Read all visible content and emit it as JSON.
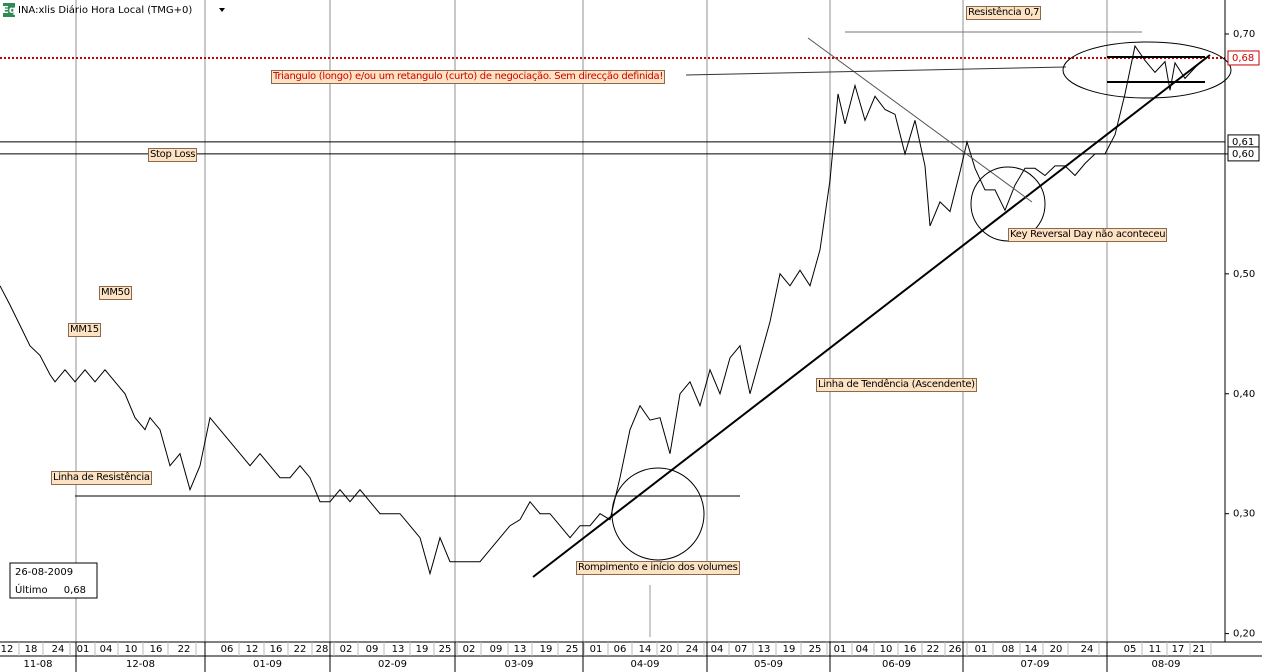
{
  "chart_data": {
    "type": "line",
    "title": "INA:xlis Diário Hora Local (TMG+0)",
    "badge": "Eq",
    "series": [
      {
        "name": "INA",
        "color": "#000000",
        "x": [
          0,
          2,
          4,
          6,
          8,
          10,
          11,
          13,
          15,
          17,
          19,
          21,
          23,
          25,
          27,
          29,
          30,
          32,
          34,
          36,
          38,
          40,
          42,
          44,
          46,
          48,
          50,
          52,
          54,
          56,
          58,
          60,
          62,
          64,
          66,
          68,
          70,
          72,
          74,
          76,
          78,
          80,
          82,
          84,
          86,
          88,
          90,
          92,
          94,
          96,
          98,
          100,
          102,
          104,
          106,
          108,
          110,
          112,
          114,
          116,
          118,
          120,
          122,
          124,
          126,
          128,
          130,
          132,
          134,
          136,
          138,
          140,
          142,
          144,
          146,
          148,
          150,
          152,
          154,
          156,
          158,
          160,
          162,
          164,
          166,
          167.6,
          169,
          171,
          173,
          175,
          177,
          179,
          181,
          183,
          185,
          186,
          188,
          190,
          192,
          193.4,
          195,
          197,
          199,
          201,
          203,
          205,
          207,
          209,
          211,
          213,
          215,
          217,
          219,
          221,
          223,
          225,
          227,
          229,
          231,
          233,
          234,
          235,
          237,
          239,
          241
        ],
        "values": [
          0.49,
          0.474,
          0.457,
          0.44,
          0.432,
          0.416,
          0.41,
          0.42,
          0.41,
          0.42,
          0.41,
          0.42,
          0.41,
          0.4,
          0.38,
          0.37,
          0.38,
          0.37,
          0.34,
          0.35,
          0.32,
          0.34,
          0.38,
          0.37,
          0.36,
          0.35,
          0.34,
          0.35,
          0.34,
          0.33,
          0.33,
          0.34,
          0.33,
          0.31,
          0.31,
          0.32,
          0.31,
          0.32,
          0.31,
          0.3,
          0.3,
          0.3,
          0.29,
          0.28,
          0.25,
          0.28,
          0.26,
          0.26,
          0.26,
          0.26,
          0.27,
          0.28,
          0.29,
          0.295,
          0.31,
          0.3,
          0.3,
          0.29,
          0.28,
          0.29,
          0.29,
          0.3,
          0.295,
          0.33,
          0.37,
          0.39,
          0.378,
          0.38,
          0.35,
          0.4,
          0.41,
          0.39,
          0.42,
          0.4,
          0.43,
          0.44,
          0.4,
          0.43,
          0.46,
          0.5,
          0.49,
          0.503,
          0.49,
          0.52,
          0.578,
          0.65,
          0.625,
          0.657,
          0.628,
          0.648,
          0.637,
          0.633,
          0.6,
          0.628,
          0.59,
          0.54,
          0.56,
          0.552,
          0.585,
          0.61,
          0.588,
          0.57,
          0.57,
          0.553,
          0.574,
          0.588,
          0.588,
          0.582,
          0.59,
          0.59,
          0.582,
          0.592,
          0.6,
          0.6,
          0.616,
          0.65,
          0.69,
          0.678,
          0.668,
          0.677,
          0.653,
          0.676,
          0.663,
          0.672,
          0.68
        ]
      }
    ],
    "xlim": [
      0,
      245
    ],
    "ylim": [
      0.193,
      0.725
    ],
    "yticks": [
      {
        "value": 0.2,
        "label": "0,20"
      },
      {
        "value": 0.3,
        "label": "0,30"
      },
      {
        "value": 0.4,
        "label": "0,40"
      },
      {
        "value": 0.5,
        "label": "0,50"
      },
      {
        "value": 0.6,
        "label": "0,60"
      },
      {
        "value": 0.7,
        "label": "0,70"
      }
    ],
    "xticks": [
      {
        "value": 1.4,
        "label": "12"
      },
      {
        "value": 6.2,
        "label": "18"
      },
      {
        "value": 11.6,
        "label": "24"
      },
      {
        "value": 16.6,
        "label": "01"
      },
      {
        "value": 21.2,
        "label": "04"
      },
      {
        "value": 26.2,
        "label": "10"
      },
      {
        "value": 31.2,
        "label": "16"
      },
      {
        "value": 36.8,
        "label": "22"
      },
      {
        "value": 45.4,
        "label": "06"
      },
      {
        "value": 50.4,
        "label": "12"
      },
      {
        "value": 55.2,
        "label": "16"
      },
      {
        "value": 60,
        "label": "22"
      },
      {
        "value": 64.4,
        "label": "28"
      },
      {
        "value": 69.2,
        "label": "02"
      },
      {
        "value": 74.4,
        "label": "09"
      },
      {
        "value": 79.6,
        "label": "13"
      },
      {
        "value": 84.4,
        "label": "19"
      },
      {
        "value": 89,
        "label": "25"
      },
      {
        "value": 93.8,
        "label": "02"
      },
      {
        "value": 99.2,
        "label": "09"
      },
      {
        "value": 104,
        "label": "13"
      },
      {
        "value": 109.2,
        "label": "19"
      },
      {
        "value": 114.4,
        "label": "25"
      },
      {
        "value": 119.2,
        "label": "01"
      },
      {
        "value": 124,
        "label": "06"
      },
      {
        "value": 129,
        "label": "14"
      },
      {
        "value": 133.2,
        "label": "20"
      },
      {
        "value": 138.4,
        "label": "24"
      },
      {
        "value": 143.4,
        "label": "04"
      },
      {
        "value": 148.2,
        "label": "07"
      },
      {
        "value": 152.8,
        "label": "13"
      },
      {
        "value": 157.8,
        "label": "19"
      },
      {
        "value": 163,
        "label": "25"
      },
      {
        "value": 168,
        "label": "01"
      },
      {
        "value": 172.4,
        "label": "04"
      },
      {
        "value": 177.2,
        "label": "10"
      },
      {
        "value": 182,
        "label": "16"
      },
      {
        "value": 186.6,
        "label": "22"
      },
      {
        "value": 191,
        "label": "26"
      },
      {
        "value": 196.2,
        "label": "01"
      },
      {
        "value": 201.6,
        "label": "08"
      },
      {
        "value": 206.2,
        "label": "14"
      },
      {
        "value": 211.2,
        "label": "20"
      },
      {
        "value": 217.4,
        "label": "24"
      },
      {
        "value": 226,
        "label": "05"
      },
      {
        "value": 231,
        "label": "11"
      },
      {
        "value": 235.6,
        "label": "17"
      },
      {
        "value": 239.8,
        "label": "21"
      }
    ],
    "months": [
      {
        "value": 0,
        "label": "11-08"
      },
      {
        "value": 15.2,
        "label": "12-08"
      },
      {
        "value": 41,
        "label": "01-09"
      },
      {
        "value": 66,
        "label": "02-09"
      },
      {
        "value": 91,
        "label": "03-09"
      },
      {
        "value": 116.6,
        "label": "04-09"
      },
      {
        "value": 141.4,
        "label": "05-09"
      },
      {
        "value": 166,
        "label": "06-09"
      },
      {
        "value": 192.6,
        "label": "07-09"
      },
      {
        "value": 221.4,
        "label": "08-09"
      }
    ],
    "hlines": [
      {
        "value": 0.68,
        "label": "0,68",
        "color": "#cc0000",
        "style": "dotted"
      },
      {
        "value": 0.61,
        "label": "0,61",
        "color": "#000000",
        "style": "solid"
      },
      {
        "value": 0.6,
        "label": "0,60",
        "color": "#000000",
        "style": "solid"
      }
    ],
    "annotations": [
      "Resistência 0,7",
      "Triangulo (longo) e/ou um retangulo (curto) de negociação. Sem direcção definida!",
      "Stop Loss",
      "MM50",
      "MM15",
      "Linha de Resistência",
      "Rompimento e início dos volumes",
      "Linha de Tendência (Ascendente)",
      "Key Reversal Day não aconteceu"
    ],
    "info": {
      "date": "26-08-2009",
      "label": "Último",
      "value": "0,68"
    }
  }
}
